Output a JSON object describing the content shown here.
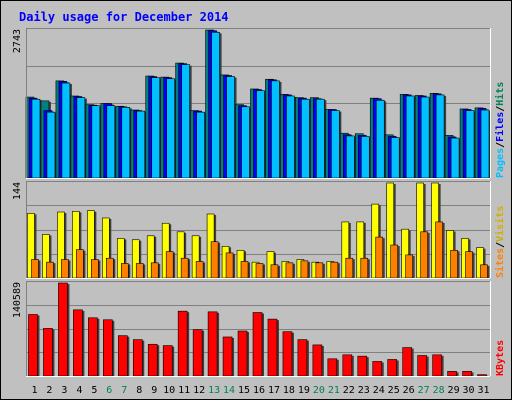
{
  "chart_data": {
    "type": "bar",
    "title": "Daily usage for December 2014",
    "categories": [
      "1",
      "2",
      "3",
      "4",
      "5",
      "6",
      "7",
      "8",
      "9",
      "10",
      "11",
      "12",
      "13",
      "14",
      "15",
      "16",
      "17",
      "18",
      "19",
      "20",
      "21",
      "22",
      "23",
      "24",
      "25",
      "26",
      "27",
      "28",
      "29",
      "30",
      "31"
    ],
    "weekend_days": [
      "6",
      "7",
      "13",
      "14",
      "20",
      "21",
      "27",
      "28"
    ],
    "panels": [
      {
        "id": "pages-files-hits",
        "ymax_label": "2743",
        "ymax": 2743,
        "legend": [
          {
            "text": "Hits",
            "color": "#00805c"
          },
          {
            "text": "/",
            "color": "#000000"
          },
          {
            "text": "Files",
            "color": "#0000ff"
          },
          {
            "text": "/",
            "color": "#000000"
          },
          {
            "text": "Pages",
            "color": "#00c0ff"
          }
        ],
        "series": [
          {
            "name": "Hits",
            "color": "#008080",
            "values": [
              1500,
              1430,
              1800,
              1520,
              1360,
              1380,
              1330,
              1260,
              1890,
              1870,
              2130,
              1250,
              2743,
              1910,
              1360,
              1650,
              1830,
              1550,
              1490,
              1490,
              1270,
              830,
              820,
              1480,
              800,
              1550,
              1530,
              1570,
              790,
              1280,
              1300
            ]
          },
          {
            "name": "Files",
            "color": "#0000ff",
            "values": [
              1480,
              1250,
              1790,
              1510,
              1350,
              1380,
              1320,
              1250,
              1880,
              1860,
              2120,
              1240,
              2730,
              1900,
              1340,
              1640,
              1820,
              1540,
              1480,
              1470,
              1270,
              800,
              790,
              1470,
              770,
              1540,
              1520,
              1560,
              760,
              1270,
              1290
            ]
          },
          {
            "name": "Pages",
            "color": "#00c0ff",
            "values": [
              1460,
              1220,
              1760,
              1490,
              1340,
              1340,
              1310,
              1240,
              1860,
              1840,
              2100,
              1220,
              2700,
              1880,
              1320,
              1620,
              1800,
              1520,
              1460,
              1460,
              1250,
              780,
              770,
              1440,
              750,
              1520,
              1500,
              1540,
              740,
              1250,
              1260
            ]
          }
        ]
      },
      {
        "id": "sites-visits",
        "ymax_label": "144",
        "ymax": 144,
        "legend": [
          {
            "text": "Visits",
            "color": "#d0b000"
          },
          {
            "text": "/",
            "color": "#000000"
          },
          {
            "text": "Sites",
            "color": "#ff8000"
          }
        ],
        "series": [
          {
            "name": "Visits",
            "color": "#ffff00",
            "values": [
              98,
              66,
              100,
              101,
              102,
              91,
              60,
              58,
              64,
              83,
              70,
              64,
              97,
              48,
              42,
              24,
              40,
              25,
              28,
              24,
              25,
              85,
              85,
              112,
              144,
              74,
              144,
              144,
              72,
              60,
              46
            ]
          },
          {
            "name": "Sites",
            "color": "#ff8000",
            "values": [
              28,
              24,
              28,
              43,
              28,
              30,
              22,
              22,
              23,
              40,
              30,
              25,
              55,
              38,
              25,
              22,
              20,
              23,
              26,
              23,
              24,
              30,
              30,
              62,
              50,
              35,
              70,
              85,
              42,
              40,
              20
            ]
          }
        ]
      },
      {
        "id": "kbytes",
        "ymax_label": "140589",
        "ymax": 140589,
        "legend": [
          {
            "text": "KBytes",
            "color": "#ff0000"
          }
        ],
        "series": [
          {
            "name": "KBytes",
            "color": "#ff0000",
            "values": [
              93000,
              72000,
              140589,
              100000,
              88000,
              85000,
              61000,
              55000,
              48000,
              46000,
              98000,
              70000,
              97000,
              59000,
              68000,
              96000,
              86000,
              67000,
              55000,
              47000,
              26000,
              32000,
              30000,
              22000,
              25000,
              43000,
              31000,
              32000,
              7000,
              7000,
              2000
            ]
          }
        ]
      }
    ]
  }
}
